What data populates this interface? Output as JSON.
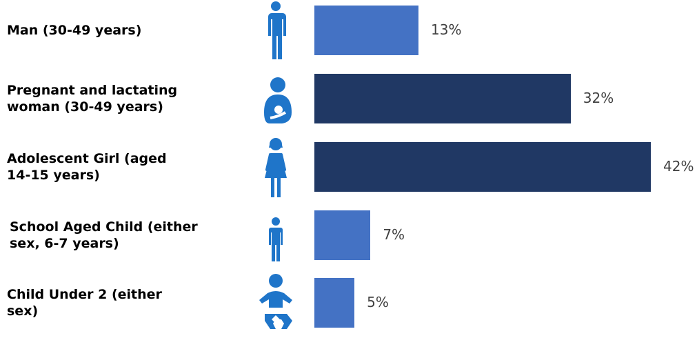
{
  "chart_data": {
    "type": "bar",
    "orientation": "horizontal",
    "categories": [
      "Man (30-49 years)",
      "Pregnant and lactating woman (30-49 years)",
      "Adolescent Girl (aged 14-15 years)",
      "School Aged Child (either sex, 6-7 years)",
      "Child Under 2 (either sex)"
    ],
    "category_lines": [
      [
        "Man (30-49 years)"
      ],
      [
        "Pregnant and lactating",
        "woman (30-49 years)"
      ],
      [
        "Adolescent Girl (aged",
        "14-15 years)"
      ],
      [
        "School Aged Child (either",
        "sex, 6-7 years)"
      ],
      [
        "Child Under 2 (either",
        "sex)"
      ]
    ],
    "values": [
      13,
      32,
      42,
      7,
      5
    ],
    "value_labels": [
      "13%",
      "32%",
      "42%",
      "7%",
      "5%"
    ],
    "unit": "%",
    "icons": [
      "man-icon",
      "breastfeeding-mother-icon",
      "girl-icon",
      "child-icon",
      "baby-icon"
    ],
    "bar_colors": [
      "#4472c4",
      "#203864",
      "#203864",
      "#4472c4",
      "#4472c4"
    ],
    "icon_color": "#1f75c9",
    "title": "",
    "xlabel": "",
    "ylabel": "",
    "xlim": [
      0,
      45
    ],
    "grid": false,
    "legend": "none"
  }
}
